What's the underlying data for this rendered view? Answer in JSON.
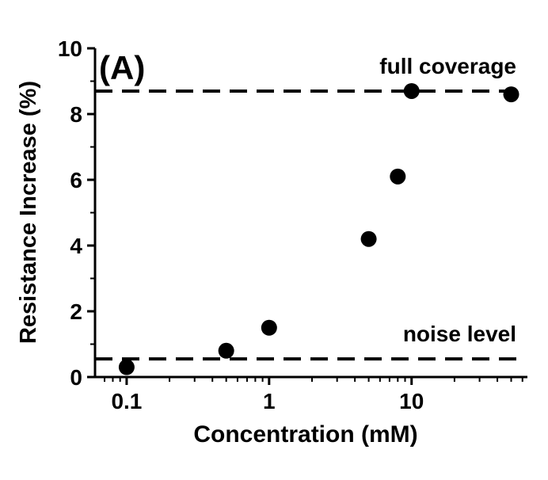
{
  "chart_data": {
    "type": "scatter",
    "panel_label": "(A)",
    "xlabel": "Concentration (mM)",
    "ylabel": "Resistance Increase (%)",
    "xscale": "log",
    "xlim": [
      0.06,
      65
    ],
    "ylim": [
      0,
      10
    ],
    "x_ticks": [
      {
        "value": 0.1,
        "label": "0.1"
      },
      {
        "value": 1,
        "label": "1"
      },
      {
        "value": 10,
        "label": "10"
      }
    ],
    "y_ticks": [
      {
        "value": 0,
        "label": "0"
      },
      {
        "value": 2,
        "label": "2"
      },
      {
        "value": 4,
        "label": "4"
      },
      {
        "value": 6,
        "label": "6"
      },
      {
        "value": 8,
        "label": "8"
      },
      {
        "value": 10,
        "label": "10"
      }
    ],
    "grid": false,
    "series": [
      {
        "x": [
          0.1,
          0.5,
          1,
          5,
          8,
          10,
          50
        ],
        "y": [
          0.3,
          0.8,
          1.5,
          4.2,
          6.1,
          8.7,
          8.6
        ]
      }
    ],
    "reference_lines": [
      {
        "y": 8.7,
        "label": "full coverage",
        "style": "dashed"
      },
      {
        "y": 0.55,
        "label": "noise level",
        "style": "dashed"
      }
    ],
    "colors": {
      "marker": "#000000",
      "line": "#000000"
    }
  }
}
